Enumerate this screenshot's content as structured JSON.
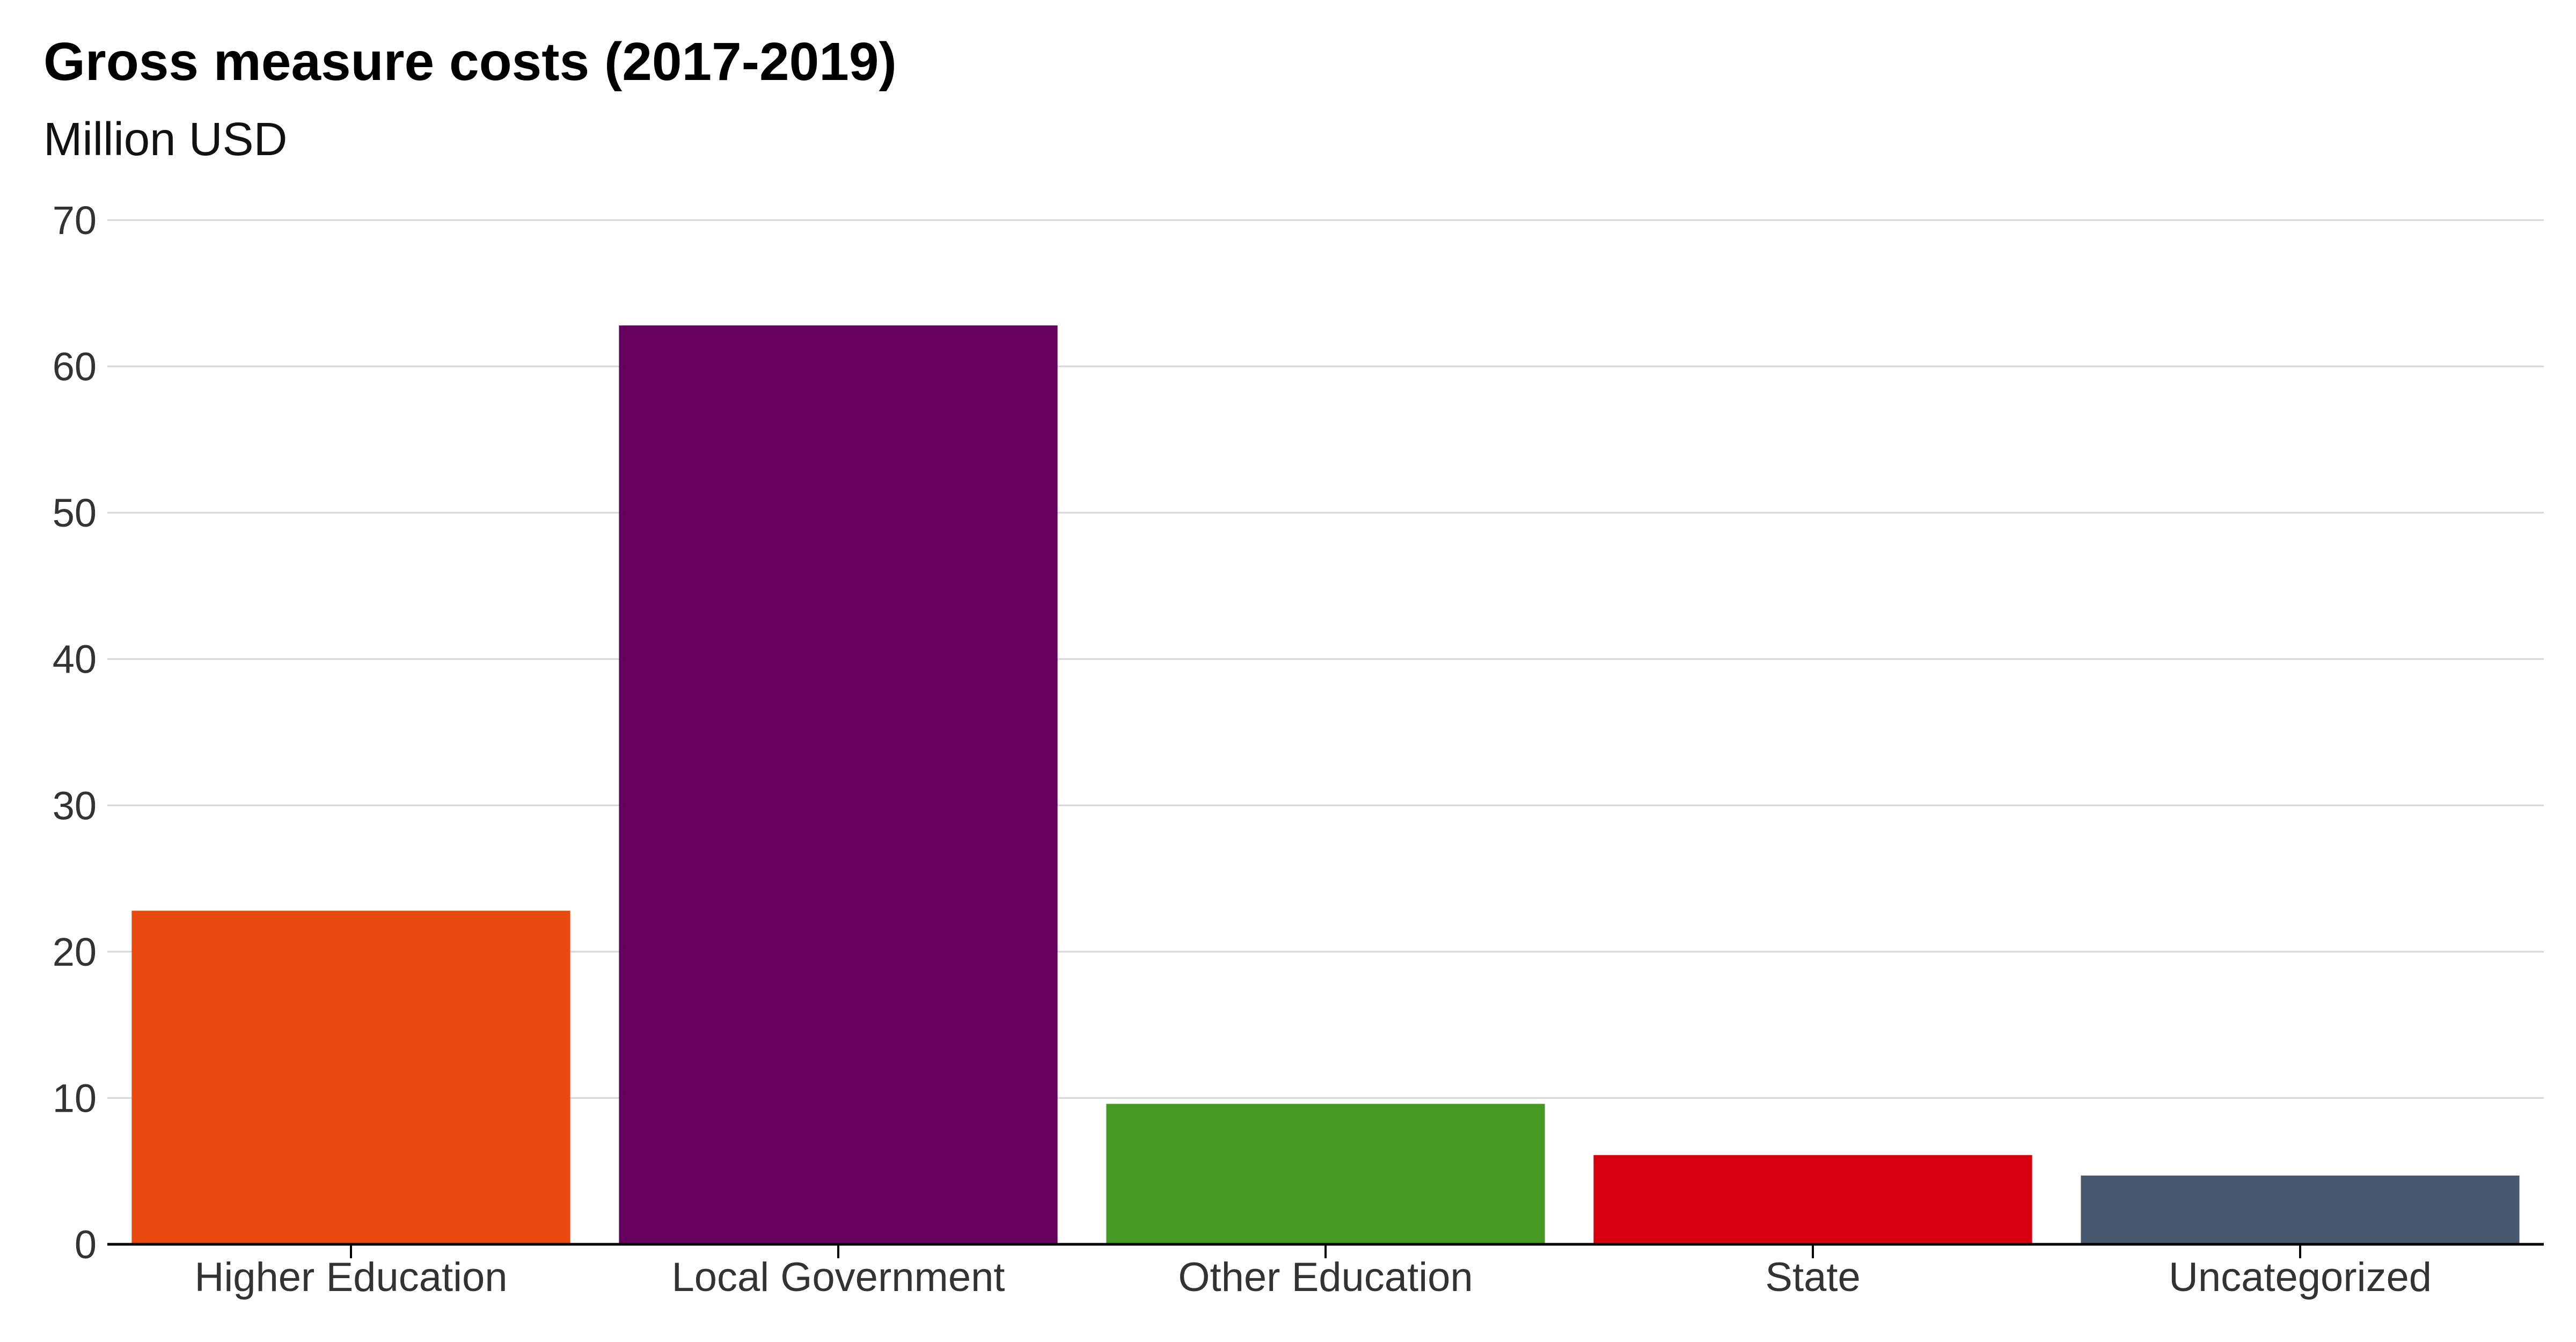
{
  "chart_data": {
    "type": "bar",
    "title": "Gross measure costs (2017-2019)",
    "subtitle": "Million USD",
    "xlabel": "",
    "ylabel": "",
    "categories": [
      "Higher Education",
      "Local Government",
      "Other Education",
      "State",
      "Uncategorized"
    ],
    "values": [
      22.8,
      62.8,
      9.6,
      6.1,
      4.7
    ],
    "colors": [
      "#e8490f",
      "#65005e",
      "#449a22",
      "#d7000f",
      "#47586f"
    ],
    "ylim": [
      0,
      70
    ],
    "yticks": [
      0,
      10,
      20,
      30,
      40,
      50,
      60,
      70
    ],
    "grid": true,
    "legend": "none"
  }
}
